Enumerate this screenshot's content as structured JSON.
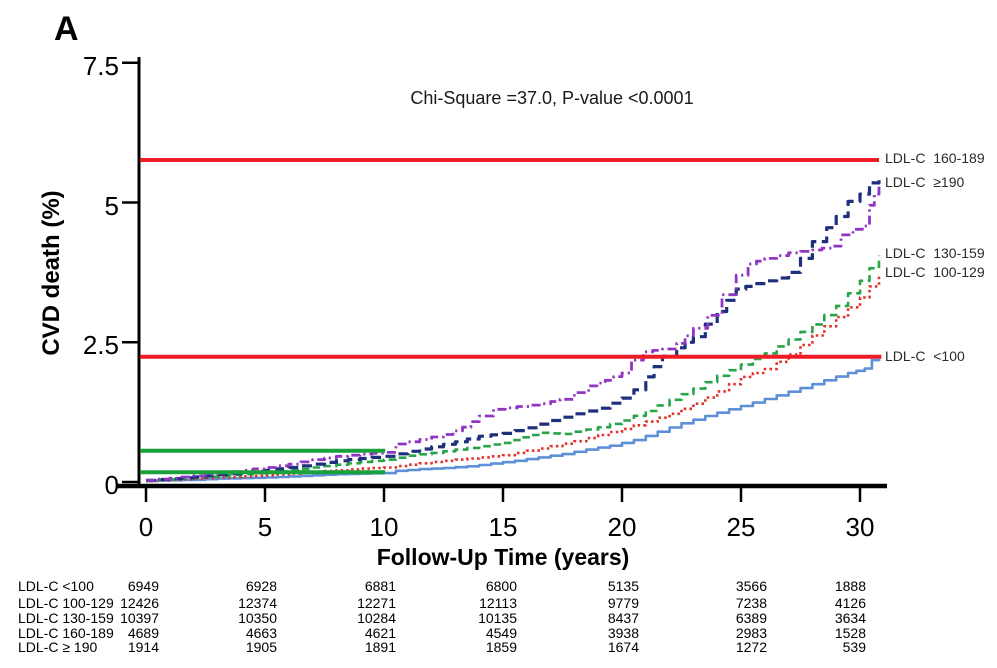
{
  "panel_label": "A",
  "annotation": "Chi-Square =37.0, P-value <0.0001",
  "axes": {
    "y_label": "CVD death (%)",
    "x_label": "Follow-Up Time (years)",
    "y_ticks": [
      {
        "label": "7.5",
        "value": 7.5
      },
      {
        "label": "5",
        "value": 5
      },
      {
        "label": "2.5",
        "value": 2.5
      },
      {
        "label": "0",
        "value": 0
      }
    ],
    "x_ticks": [
      {
        "label": "0",
        "value": 0
      },
      {
        "label": "5",
        "value": 5
      },
      {
        "label": "10",
        "value": 10
      },
      {
        "label": "15",
        "value": 15
      },
      {
        "label": "20",
        "value": 20
      },
      {
        "label": "25",
        "value": 25
      },
      {
        "label": "30",
        "value": 30
      }
    ]
  },
  "colors": {
    "lt100": "#5e90d8",
    "c100_129": "#e0312b",
    "c130_159": "#27a348",
    "c160_189": "#1e2f7c",
    "ge190": "#9136c4",
    "red_ref": "#ed1c25",
    "green_ref": "#19a23b",
    "axis": "#000000"
  },
  "chart_data": {
    "type": "line",
    "title": "",
    "xlabel": "Follow-Up Time (years)",
    "ylabel": "CVD death (%)",
    "xlim": [
      0,
      31
    ],
    "ylim": [
      0,
      8
    ],
    "x_ticks": [
      0,
      5,
      10,
      15,
      20,
      25,
      30
    ],
    "y_ticks": [
      0,
      2.5,
      5,
      7.5
    ],
    "grid": false,
    "annotation": "Chi-Square =37.0, P-value <0.0001",
    "legend_position": "right-of-curve-ends",
    "series": [
      {
        "name": "LDL-C <100",
        "label": "LDL-C  <100",
        "style": "solid",
        "color_key": "lt100",
        "label_y": 2.26,
        "points": [
          [
            0,
            0.02
          ],
          [
            1,
            0.03
          ],
          [
            2,
            0.04
          ],
          [
            3,
            0.06
          ],
          [
            4,
            0.07
          ],
          [
            5,
            0.08
          ],
          [
            6,
            0.1
          ],
          [
            7,
            0.12
          ],
          [
            8,
            0.14
          ],
          [
            9,
            0.15
          ],
          [
            10,
            0.16
          ],
          [
            10.5,
            0.2
          ],
          [
            11.5,
            0.23
          ],
          [
            12.5,
            0.25
          ],
          [
            13.5,
            0.28
          ],
          [
            14.5,
            0.33
          ],
          [
            15.5,
            0.38
          ],
          [
            16.5,
            0.44
          ],
          [
            17.5,
            0.5
          ],
          [
            18.5,
            0.58
          ],
          [
            19.5,
            0.65
          ],
          [
            20.5,
            0.75
          ],
          [
            21.5,
            0.9
          ],
          [
            22.5,
            1.05
          ],
          [
            23.5,
            1.18
          ],
          [
            24.5,
            1.3
          ],
          [
            25.5,
            1.42
          ],
          [
            26.5,
            1.55
          ],
          [
            27.5,
            1.68
          ],
          [
            28.5,
            1.82
          ],
          [
            29.5,
            1.95
          ],
          [
            30.2,
            2.03
          ],
          [
            30.5,
            2.18
          ],
          [
            30.8,
            2.2
          ]
        ]
      },
      {
        "name": "LDL-C 100-129",
        "label": "LDL-C  100-129",
        "style": "dotted",
        "color_key": "c100_129",
        "label_y": 3.76,
        "points": [
          [
            0,
            0.02
          ],
          [
            1,
            0.04
          ],
          [
            2,
            0.06
          ],
          [
            3,
            0.08
          ],
          [
            4,
            0.1
          ],
          [
            5,
            0.12
          ],
          [
            6,
            0.15
          ],
          [
            7,
            0.18
          ],
          [
            8,
            0.21
          ],
          [
            9,
            0.24
          ],
          [
            10,
            0.26
          ],
          [
            11,
            0.31
          ],
          [
            12,
            0.36
          ],
          [
            13,
            0.4
          ],
          [
            14,
            0.44
          ],
          [
            15,
            0.48
          ],
          [
            16,
            0.56
          ],
          [
            17,
            0.64
          ],
          [
            18,
            0.73
          ],
          [
            19,
            0.84
          ],
          [
            20,
            0.95
          ],
          [
            21,
            1.08
          ],
          [
            22,
            1.22
          ],
          [
            23,
            1.4
          ],
          [
            24,
            1.62
          ],
          [
            25,
            1.88
          ],
          [
            26,
            2.02
          ],
          [
            27,
            2.28
          ],
          [
            28,
            2.62
          ],
          [
            29,
            2.95
          ],
          [
            30,
            3.3
          ],
          [
            30.8,
            3.7
          ]
        ]
      },
      {
        "name": "LDL-C 130-159",
        "label": "LDL-C  130-159",
        "style": "dashed",
        "color_key": "c130_159",
        "label_y": 4.1,
        "points": [
          [
            0,
            0.02
          ],
          [
            1,
            0.05
          ],
          [
            2,
            0.08
          ],
          [
            3,
            0.11
          ],
          [
            4,
            0.14
          ],
          [
            5,
            0.17
          ],
          [
            6,
            0.21
          ],
          [
            7,
            0.26
          ],
          [
            8,
            0.31
          ],
          [
            9,
            0.36
          ],
          [
            10,
            0.4
          ],
          [
            11,
            0.47
          ],
          [
            12,
            0.52
          ],
          [
            13,
            0.58
          ],
          [
            14,
            0.64
          ],
          [
            15,
            0.7
          ],
          [
            15.8,
            0.8
          ],
          [
            16.6,
            0.88
          ],
          [
            17.4,
            0.86
          ],
          [
            18,
            0.9
          ],
          [
            19,
            0.98
          ],
          [
            20,
            1.1
          ],
          [
            21,
            1.27
          ],
          [
            22,
            1.47
          ],
          [
            23,
            1.67
          ],
          [
            24,
            1.9
          ],
          [
            25,
            2.1
          ],
          [
            26,
            2.3
          ],
          [
            27,
            2.55
          ],
          [
            28,
            2.82
          ],
          [
            29,
            3.15
          ],
          [
            30,
            3.6
          ],
          [
            30.8,
            4.05
          ]
        ]
      },
      {
        "name": "LDL-C 160-189",
        "label": "LDL-C  160-189",
        "style": "dashed-long",
        "color_key": "c160_189",
        "label_y": 5.8,
        "points": [
          [
            0,
            0.03
          ],
          [
            1,
            0.06
          ],
          [
            2,
            0.09
          ],
          [
            3,
            0.13
          ],
          [
            4,
            0.17
          ],
          [
            5,
            0.21
          ],
          [
            6,
            0.26
          ],
          [
            7,
            0.32
          ],
          [
            8,
            0.38
          ],
          [
            9,
            0.42
          ],
          [
            10,
            0.46
          ],
          [
            11,
            0.55
          ],
          [
            12,
            0.63
          ],
          [
            13,
            0.72
          ],
          [
            14,
            0.82
          ],
          [
            15,
            0.87
          ],
          [
            16,
            0.97
          ],
          [
            17,
            1.1
          ],
          [
            18,
            1.22
          ],
          [
            19,
            1.32
          ],
          [
            20,
            1.5
          ],
          [
            20.5,
            1.65
          ],
          [
            21,
            1.88
          ],
          [
            21.7,
            2.25
          ],
          [
            22.3,
            2.4
          ],
          [
            23,
            2.6
          ],
          [
            24,
            3.05
          ],
          [
            24.8,
            3.45
          ],
          [
            25.6,
            3.55
          ],
          [
            26.5,
            3.65
          ],
          [
            27,
            3.75
          ],
          [
            27.5,
            4.0
          ],
          [
            28,
            4.3
          ],
          [
            28.6,
            4.55
          ],
          [
            29,
            4.75
          ],
          [
            29.5,
            5.02
          ],
          [
            30,
            5.15
          ],
          [
            30.4,
            5.35
          ],
          [
            30.8,
            5.45
          ]
        ]
      },
      {
        "name": "LDL-C ≥190",
        "label": "LDL-C  ≥190",
        "style": "dashdot",
        "color_key": "ge190",
        "label_y": 5.37,
        "points": [
          [
            0,
            0.03
          ],
          [
            1,
            0.07
          ],
          [
            2,
            0.11
          ],
          [
            3,
            0.16
          ],
          [
            4,
            0.21
          ],
          [
            5,
            0.26
          ],
          [
            6,
            0.32
          ],
          [
            7,
            0.4
          ],
          [
            8,
            0.46
          ],
          [
            9,
            0.5
          ],
          [
            10,
            0.53
          ],
          [
            10.5,
            0.68
          ],
          [
            11.5,
            0.76
          ],
          [
            12.5,
            0.85
          ],
          [
            13.3,
            0.98
          ],
          [
            14,
            1.18
          ],
          [
            14.6,
            1.3
          ],
          [
            15.6,
            1.35
          ],
          [
            16.6,
            1.4
          ],
          [
            17.4,
            1.48
          ],
          [
            18,
            1.6
          ],
          [
            18.6,
            1.72
          ],
          [
            19.3,
            1.82
          ],
          [
            20,
            1.95
          ],
          [
            20.4,
            2.18
          ],
          [
            20.9,
            2.33
          ],
          [
            21.7,
            2.38
          ],
          [
            22.3,
            2.48
          ],
          [
            23,
            2.75
          ],
          [
            23.6,
            2.98
          ],
          [
            24.2,
            3.35
          ],
          [
            24.8,
            3.7
          ],
          [
            25.3,
            3.9
          ],
          [
            26,
            4.0
          ],
          [
            27,
            4.1
          ],
          [
            28,
            4.15
          ],
          [
            28.8,
            4.22
          ],
          [
            29.2,
            4.42
          ],
          [
            29.7,
            4.52
          ],
          [
            30.1,
            4.58
          ],
          [
            30.4,
            4.95
          ],
          [
            30.6,
            5.15
          ],
          [
            30.8,
            5.3
          ]
        ]
      }
    ],
    "reference_lines": [
      {
        "axis": "y",
        "value": 5.76,
        "x_start": -0.25,
        "x_end": 30.8,
        "color_key": "red_ref",
        "width": 4
      },
      {
        "axis": "y",
        "value": 2.24,
        "x_start": -0.25,
        "x_end": 30.9,
        "color_key": "red_ref",
        "width": 4
      },
      {
        "axis": "y",
        "value": 0.56,
        "x_start": -0.25,
        "x_end": 10.05,
        "color_key": "green_ref",
        "width": 4
      },
      {
        "axis": "y",
        "value": 0.175,
        "x_start": -0.25,
        "x_end": 10.05,
        "color_key": "green_ref",
        "width": 4
      }
    ]
  },
  "risk_table": {
    "rows": [
      {
        "label": "LDL-C <100",
        "values": [
          "6949",
          "6928",
          "6881",
          "6800",
          "5135",
          "3566",
          "1888"
        ]
      },
      {
        "label": "LDL-C 100-129",
        "values": [
          "12426",
          "12374",
          "12271",
          "12113",
          "9779",
          "7238",
          "4126"
        ]
      },
      {
        "label": "LDL-C 130-159",
        "values": [
          "10397",
          "10350",
          "10284",
          "10135",
          "8437",
          "6389",
          "3634"
        ]
      },
      {
        "label": "LDL-C 160-189",
        "values": [
          "4689",
          "4663",
          "4621",
          "4549",
          "3938",
          "2983",
          "1528"
        ]
      },
      {
        "label": "LDL-C ≥ 190",
        "values": [
          "1914",
          "1905",
          "1891",
          "1859",
          "1674",
          "1272",
          "539"
        ]
      }
    ]
  }
}
